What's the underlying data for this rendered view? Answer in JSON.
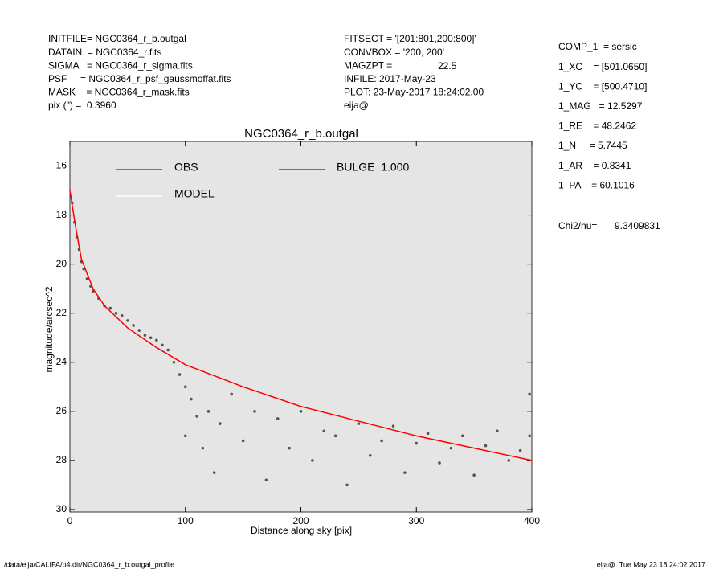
{
  "header": {
    "left": [
      "INITFILE= NGC0364_r_b.outgal",
      "DATAIN  = NGC0364_r.fits",
      "SIGMA   = NGC0364_r_sigma.fits",
      "PSF     = NGC0364_r_psf_gaussmoffat.fits",
      "MASK    = NGC0364_r_mask.fits",
      "pix (\") =  0.3960"
    ],
    "middle": [
      "FITSECT = '[201:801,200:800]'",
      "CONVBOX = '200, 200'",
      "MAGZPT =",
      "INFILE: 2017-May-23",
      "PLOT: 23-May-2017 18:24:02.00",
      "eija@"
    ],
    "magzpt": "22.5",
    "right": [
      "COMP_1  = sersic",
      "1_XC    = [501.0650]",
      "1_YC    = [500.4710]",
      "1_MAG   = 12.5297",
      "1_RE    = 48.2462",
      "1_N     = 5.7445",
      "1_AR    = 0.8341",
      "1_PA    = 60.1016"
    ],
    "chi2_label": "Chi2/nu=",
    "chi2_value": "9.3409831"
  },
  "footer": {
    "left": "/data/eija/CALIFA/p4.dir/NGC0364_r_b.outgal_profile",
    "right": "eija@  Tue May 23 18:24:02 2017"
  },
  "chart_data": {
    "type": "scatter",
    "title": "NGC0364_r_b.outgal",
    "x_label": "Distance along sky [pix]",
    "y_label": "magnitude/arcsec^2",
    "xlim": [
      0,
      400
    ],
    "ylim": [
      30.1,
      15
    ],
    "xticks": [
      0,
      100,
      200,
      300,
      400
    ],
    "yticks": [
      16,
      18,
      20,
      22,
      24,
      26,
      28,
      30
    ],
    "series": [
      {
        "name": "OBS",
        "color": "#555555",
        "kind": "scatter",
        "x": [
          2,
          4,
          6,
          8,
          10,
          12,
          15,
          18,
          20,
          25,
          30,
          35,
          40,
          45,
          50,
          55,
          60,
          65,
          70,
          75,
          80,
          85,
          90,
          95,
          100,
          100,
          105,
          110,
          115,
          120,
          125,
          130,
          140,
          150,
          160,
          170,
          180,
          190,
          200,
          210,
          220,
          230,
          240,
          250,
          260,
          270,
          280,
          290,
          300,
          310,
          320,
          330,
          340,
          350,
          360,
          370,
          380,
          390,
          398,
          398
        ],
        "values": [
          17.5,
          18.3,
          18.9,
          19.4,
          19.9,
          20.2,
          20.6,
          20.9,
          21.1,
          21.4,
          21.7,
          21.8,
          22.0,
          22.1,
          22.3,
          22.5,
          22.7,
          22.9,
          23.0,
          23.1,
          23.3,
          23.5,
          24.0,
          24.5,
          25.0,
          27.0,
          25.5,
          26.2,
          27.5,
          26.0,
          28.5,
          26.5,
          25.3,
          27.2,
          26.0,
          28.8,
          26.3,
          27.5,
          26.0,
          28.0,
          26.8,
          27.0,
          29.0,
          26.5,
          27.8,
          27.2,
          26.6,
          28.5,
          27.3,
          26.9,
          28.1,
          27.5,
          27.0,
          28.6,
          27.4,
          26.8,
          28.0,
          27.6,
          25.3,
          27.0
        ]
      },
      {
        "name": "MODEL",
        "color": "#ffffff",
        "kind": "line",
        "x": [],
        "values": []
      },
      {
        "name": "BULGE  1.000",
        "color": "#ff0000",
        "kind": "line",
        "x": [
          0,
          5,
          10,
          20,
          30,
          50,
          75,
          100,
          150,
          200,
          250,
          300,
          350,
          400
        ],
        "values": [
          17.0,
          18.5,
          19.8,
          21.0,
          21.7,
          22.6,
          23.4,
          24.1,
          25.0,
          25.8,
          26.4,
          27.0,
          27.5,
          28.0
        ]
      }
    ]
  }
}
